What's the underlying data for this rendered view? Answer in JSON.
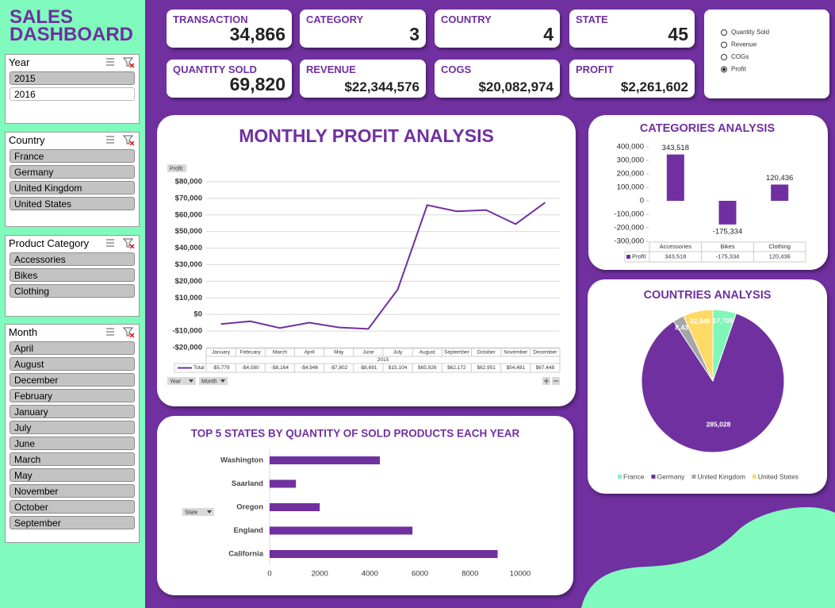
{
  "title": "SALES DASHBOARD",
  "slicers": [
    {
      "title": "Year",
      "items": [
        "2015",
        "2016"
      ],
      "selected": [
        true,
        false
      ]
    },
    {
      "title": "Country",
      "items": [
        "France",
        "Germany",
        "United Kingdom",
        "United States"
      ],
      "selected": [
        true,
        true,
        true,
        true
      ]
    },
    {
      "title": "Product Category",
      "items": [
        "Accessories",
        "Bikes",
        "Clothing"
      ],
      "selected": [
        true,
        true,
        true
      ]
    },
    {
      "title": "Month",
      "items": [
        "April",
        "August",
        "December",
        "February",
        "January",
        "July",
        "June",
        "March",
        "May",
        "November",
        "October",
        "September"
      ],
      "selected": [
        true,
        true,
        true,
        true,
        true,
        true,
        true,
        true,
        true,
        true,
        true,
        true
      ]
    }
  ],
  "kpis": [
    {
      "label": "TRANSACTION",
      "value": "34,866"
    },
    {
      "label": "CATEGORY",
      "value": "3"
    },
    {
      "label": "COUNTRY",
      "value": "4"
    },
    {
      "label": "STATE",
      "value": "45"
    },
    {
      "label": "QUANTITY SOLD",
      "value": "69,820"
    },
    {
      "label": "REVENUE",
      "value": "$22,344,576"
    },
    {
      "label": "COGS",
      "value": "$20,082,974"
    },
    {
      "label": "PROFIT",
      "value": "$2,261,602"
    }
  ],
  "options": [
    "Quantity Sold",
    "Revenue",
    "COGs",
    "Profit"
  ],
  "selected_option": 3,
  "chart_data": [
    {
      "type": "line",
      "title": "MONTHLY PROFIT ANALYSIS",
      "field_button": "Profit",
      "categories": [
        "January",
        "February",
        "March",
        "April",
        "May",
        "June",
        "July",
        "August",
        "September",
        "October",
        "November",
        "December"
      ],
      "x_group": "2015",
      "series": [
        {
          "name": "Total",
          "color": "#7030a0",
          "values": [
            -5779,
            -4080,
            -8164,
            -4946,
            -7802,
            -8691,
            15104,
            65926,
            62172,
            62951,
            54481,
            67448
          ],
          "value_labels": [
            "-$5,779",
            "-$4,080",
            "-$8,164",
            "-$4,946",
            "-$7,802",
            "-$8,691",
            "$15,104",
            "$65,926",
            "$62,172",
            "$62,951",
            "$54,481",
            "$67,448"
          ]
        }
      ],
      "ylim": [
        -20000,
        80000
      ],
      "yticks": [
        {
          "value": -20000,
          "label": "-$20,000"
        },
        {
          "value": -10000,
          "label": "-$10,000"
        },
        {
          "value": 0,
          "label": "$0"
        },
        {
          "value": 10000,
          "label": "$10,000"
        },
        {
          "value": 20000,
          "label": "$20,000"
        },
        {
          "value": 30000,
          "label": "$30,000"
        },
        {
          "value": 40000,
          "label": "$40,000"
        },
        {
          "value": 50000,
          "label": "$50,000"
        },
        {
          "value": 60000,
          "label": "$60,000"
        },
        {
          "value": 70000,
          "label": "$70,000"
        },
        {
          "value": 80000,
          "label": "$80,000"
        }
      ],
      "grid": true,
      "filter_buttons": [
        "Year",
        "Month"
      ]
    },
    {
      "type": "bar",
      "title": "CATEGORIES ANALYSIS",
      "categories": [
        "Accessories",
        "Bikes",
        "Clothing"
      ],
      "series": [
        {
          "name": "Profit",
          "color": "#7030a0",
          "values": [
            343518,
            -175334,
            120436
          ],
          "value_labels": [
            "343,518",
            "-175,334",
            "120,436"
          ]
        }
      ],
      "ylim": [
        -300000,
        400000
      ],
      "yticks": [
        {
          "value": -300000,
          "label": "-300,000"
        },
        {
          "value": -200000,
          "label": "-200,000"
        },
        {
          "value": -100000,
          "label": "-100,000"
        },
        0,
        {
          "value": 100000,
          "label": "100,000"
        },
        {
          "value": 200000,
          "label": "200,000"
        },
        {
          "value": 300000,
          "label": "300,000"
        },
        {
          "value": 400000,
          "label": "400,000"
        }
      ]
    },
    {
      "type": "pie",
      "title": "COUNTRIES ANALYSIS",
      "categories": [
        "France",
        "Germany",
        "United Kingdom",
        "United States"
      ],
      "values": [
        17705,
        285028,
        8431,
        22548
      ],
      "value_labels": [
        "17,705",
        "285,028",
        "8,431",
        "22,548"
      ],
      "colors": [
        "#7ef7b8",
        "#7030a0",
        "#a6a6a6",
        "#ffd966"
      ]
    },
    {
      "type": "hbar",
      "title": "TOP 5 STATES BY QUANTITY OF SOLD PRODUCTS EACH YEAR",
      "categories": [
        "Washington",
        "Saarland",
        "Oregon",
        "England",
        "California"
      ],
      "values": [
        4400,
        1050,
        2000,
        5700,
        9100
      ],
      "color": "#7030a0",
      "xlim": [
        0,
        10000
      ],
      "xticks": [
        0,
        2000,
        4000,
        6000,
        8000,
        10000
      ],
      "field_button": "State"
    }
  ]
}
